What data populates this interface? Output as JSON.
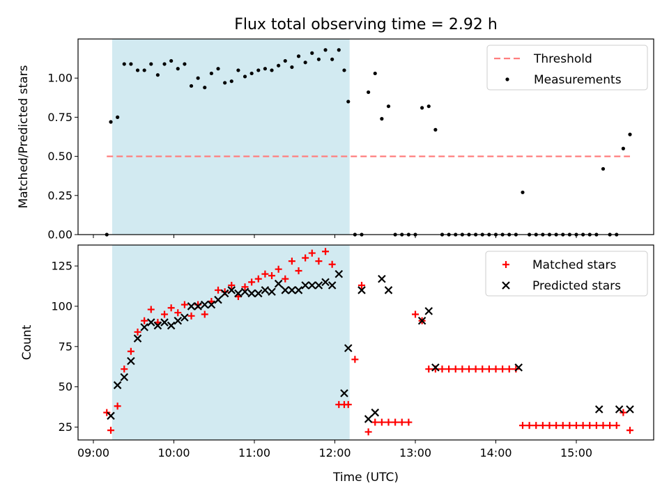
{
  "figure": {
    "title": "Flux total observing time = 2.92 h",
    "xlabel": "Time (UTC)"
  },
  "colors": {
    "shade": "#add8e6",
    "threshold": "#ff7f7f",
    "measurements": "#000000",
    "matched": "#ff0000",
    "predicted": "#000000"
  },
  "chart_data": [
    {
      "type": "scatter",
      "ylabel": "Matched/Predicted stars",
      "xlim": [
        "09:00",
        "16:00"
      ],
      "ylim": [
        0,
        1.25
      ],
      "yticks": [
        "0.00",
        "0.25",
        "0.50",
        "0.75",
        "1.00"
      ],
      "xticks": [
        "09:00",
        "10:00",
        "11:00",
        "12:00",
        "13:00",
        "14:00",
        "15:00"
      ],
      "shaded_interval": [
        "09:14",
        "12:11"
      ],
      "grid": false,
      "legend": "top-right",
      "series": [
        {
          "name": "Threshold",
          "style": "dashed-line",
          "x": [
            "09:10",
            "15:40"
          ],
          "y": [
            0.5,
            0.5
          ]
        },
        {
          "name": "Measurements",
          "style": "dot",
          "x": [
            "09:10",
            "09:13",
            "09:18",
            "09:23",
            "09:28",
            "09:33",
            "09:38",
            "09:43",
            "09:48",
            "09:53",
            "09:58",
            "10:03",
            "10:08",
            "10:13",
            "10:18",
            "10:23",
            "10:28",
            "10:33",
            "10:38",
            "10:43",
            "10:48",
            "10:53",
            "10:58",
            "11:03",
            "11:08",
            "11:13",
            "11:18",
            "11:23",
            "11:28",
            "11:33",
            "11:38",
            "11:43",
            "11:48",
            "11:53",
            "11:58",
            "12:03",
            "12:07",
            "12:10",
            "12:15",
            "12:20",
            "12:25",
            "12:30",
            "12:35",
            "12:40",
            "12:45",
            "12:50",
            "12:55",
            "13:00",
            "13:05",
            "13:10",
            "13:15",
            "13:20",
            "13:25",
            "13:30",
            "13:35",
            "13:40",
            "13:45",
            "13:50",
            "13:55",
            "14:00",
            "14:05",
            "14:10",
            "14:15",
            "14:20",
            "14:25",
            "14:30",
            "14:35",
            "14:40",
            "14:45",
            "14:50",
            "14:55",
            "15:00",
            "15:05",
            "15:10",
            "15:15",
            "15:20",
            "15:25",
            "15:30",
            "15:35",
            "15:40"
          ],
          "y": [
            0.0,
            0.72,
            0.75,
            1.09,
            1.09,
            1.05,
            1.05,
            1.09,
            1.02,
            1.09,
            1.11,
            1.06,
            1.09,
            0.95,
            1.0,
            0.94,
            1.03,
            1.06,
            0.97,
            0.98,
            1.05,
            1.01,
            1.03,
            1.05,
            1.06,
            1.05,
            1.08,
            1.11,
            1.07,
            1.14,
            1.1,
            1.16,
            1.12,
            1.18,
            1.12,
            1.18,
            1.05,
            0.85,
            0.0,
            0.0,
            0.91,
            1.03,
            0.74,
            0.82,
            0.0,
            0.0,
            0.0,
            0.0,
            0.81,
            0.82,
            0.67,
            0.0,
            0.0,
            0.0,
            0.0,
            0.0,
            0.0,
            0.0,
            0.0,
            0.0,
            0.0,
            0.0,
            0.0,
            0.27,
            0.0,
            0.0,
            0.0,
            0.0,
            0.0,
            0.0,
            0.0,
            0.0,
            0.0,
            0.0,
            0.0,
            0.42,
            0.0,
            0.0,
            0.55,
            0.64
          ]
        }
      ]
    },
    {
      "type": "scatter",
      "ylabel": "Count",
      "xlim": [
        "09:00",
        "16:00"
      ],
      "ylim": [
        17,
        138
      ],
      "yticks": [
        "25",
        "50",
        "75",
        "100",
        "125"
      ],
      "xticks": [
        "09:00",
        "10:00",
        "11:00",
        "12:00",
        "13:00",
        "14:00",
        "15:00"
      ],
      "shaded_interval": [
        "09:14",
        "12:11"
      ],
      "grid": false,
      "legend": "top-right",
      "series": [
        {
          "name": "Matched stars",
          "style": "plus",
          "x": [
            "09:10",
            "09:13",
            "09:18",
            "09:23",
            "09:28",
            "09:33",
            "09:38",
            "09:43",
            "09:48",
            "09:53",
            "09:58",
            "10:03",
            "10:08",
            "10:13",
            "10:18",
            "10:23",
            "10:28",
            "10:33",
            "10:38",
            "10:43",
            "10:48",
            "10:53",
            "10:58",
            "11:03",
            "11:08",
            "11:13",
            "11:18",
            "11:23",
            "11:28",
            "11:33",
            "11:38",
            "11:43",
            "11:48",
            "11:53",
            "11:58",
            "12:03",
            "12:07",
            "12:10",
            "12:15",
            "12:20",
            "12:25",
            "12:30",
            "12:35",
            "12:40",
            "12:45",
            "12:50",
            "12:55",
            "13:00",
            "13:05",
            "13:10",
            "13:15",
            "13:20",
            "13:25",
            "13:30",
            "13:35",
            "13:40",
            "13:45",
            "13:50",
            "13:55",
            "14:00",
            "14:05",
            "14:10",
            "14:15",
            "14:20",
            "14:25",
            "14:30",
            "14:35",
            "14:40",
            "14:45",
            "14:50",
            "14:55",
            "15:00",
            "15:05",
            "15:10",
            "15:15",
            "15:20",
            "15:25",
            "15:30",
            "15:35",
            "15:40"
          ],
          "y": [
            34,
            23,
            38,
            61,
            72,
            84,
            91,
            98,
            90,
            95,
            99,
            96,
            101,
            94,
            101,
            95,
            103,
            110,
            109,
            113,
            106,
            112,
            115,
            117,
            120,
            119,
            123,
            117,
            128,
            122,
            130,
            133,
            128,
            134,
            126,
            39,
            39,
            39,
            67,
            113,
            22,
            28,
            28,
            28,
            28,
            28,
            28,
            95,
            91,
            61,
            61,
            61,
            61,
            61,
            61,
            61,
            61,
            61,
            61,
            61,
            61,
            61,
            61,
            26,
            26,
            26,
            26,
            26,
            26,
            26,
            26,
            26,
            26,
            26,
            26,
            26,
            26,
            26,
            34,
            23
          ]
        },
        {
          "name": "Predicted stars",
          "style": "x",
          "x": [
            "09:13",
            "09:18",
            "09:23",
            "09:28",
            "09:33",
            "09:38",
            "09:43",
            "09:48",
            "09:53",
            "09:58",
            "10:03",
            "10:08",
            "10:13",
            "10:18",
            "10:23",
            "10:28",
            "10:33",
            "10:38",
            "10:43",
            "10:48",
            "10:53",
            "10:58",
            "11:03",
            "11:08",
            "11:13",
            "11:18",
            "11:23",
            "11:28",
            "11:33",
            "11:38",
            "11:43",
            "11:48",
            "11:53",
            "11:58",
            "12:03",
            "12:07",
            "12:10",
            "12:20",
            "12:25",
            "12:30",
            "12:35",
            "12:40",
            "13:05",
            "13:10",
            "13:15",
            "14:17",
            "15:17",
            "15:32",
            "15:40"
          ],
          "y": [
            32,
            51,
            56,
            66,
            80,
            87,
            90,
            88,
            90,
            88,
            91,
            93,
            100,
            100,
            101,
            101,
            104,
            108,
            110,
            108,
            109,
            108,
            108,
            110,
            109,
            114,
            110,
            110,
            110,
            113,
            113,
            113,
            115,
            113,
            120,
            46,
            74,
            110,
            30,
            34,
            117,
            110,
            91,
            97,
            62,
            62,
            36,
            36,
            36
          ]
        }
      ]
    }
  ]
}
